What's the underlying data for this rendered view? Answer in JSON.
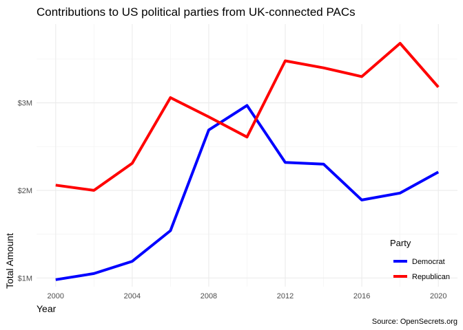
{
  "chart_data": {
    "type": "line",
    "title": "Contributions to US political parties from UK-connected PACs",
    "xlabel": "Year",
    "ylabel": "Total Amount",
    "caption": "Source: OpenSecrets.org",
    "x": [
      2000,
      2002,
      2004,
      2006,
      2008,
      2010,
      2012,
      2014,
      2016,
      2018,
      2020
    ],
    "xticks": [
      2000,
      2004,
      2008,
      2012,
      2016,
      2020
    ],
    "xlim": [
      1999,
      2021
    ],
    "yticks": [
      1000000,
      2000000,
      3000000
    ],
    "ytick_labels": [
      "$1M",
      "$2M",
      "$3M"
    ],
    "ylim": [
      900000,
      3900000
    ],
    "grid": true,
    "legend": {
      "title": "Party",
      "position": "right"
    },
    "series": [
      {
        "name": "Democrat",
        "color": "#0000ff",
        "values": [
          980000,
          1050000,
          1190000,
          1540000,
          2690000,
          2970000,
          2320000,
          2300000,
          1890000,
          1970000,
          2210000
        ]
      },
      {
        "name": "Republican",
        "color": "#ff0000",
        "values": [
          2060000,
          2000000,
          2310000,
          3060000,
          2840000,
          2610000,
          3480000,
          3400000,
          3300000,
          3680000,
          3180000
        ]
      }
    ]
  }
}
